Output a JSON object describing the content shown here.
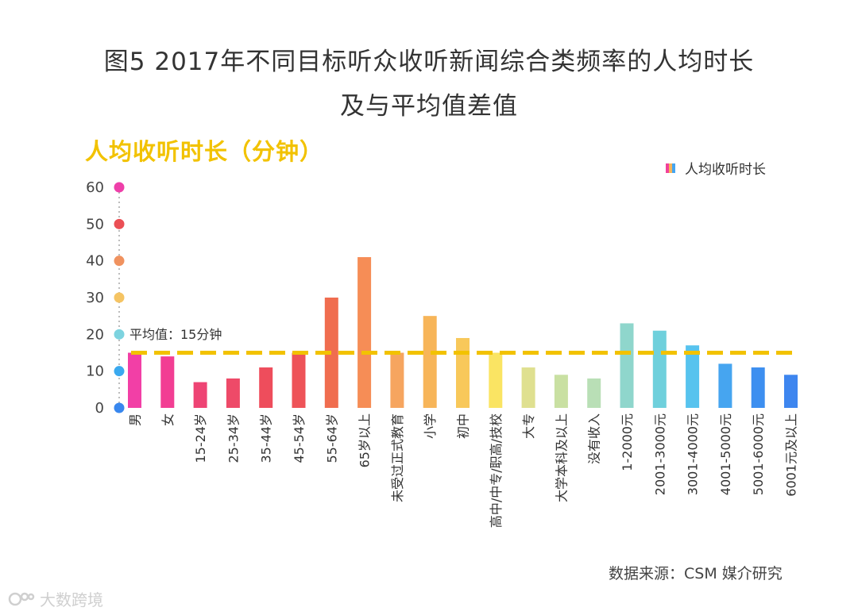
{
  "title_line1": "图5 2017年不同目标听众收听新闻综合类频率的人均时长",
  "title_line2": "及与平均值差值",
  "subtitle": "人均收听时长（分钟）",
  "legend_label": "人均收听时长",
  "source": "数据来源：CSM 媒介研究",
  "watermark": "大数跨境",
  "chart_data": {
    "type": "bar",
    "title": "图5 2017年不同目标听众收听新闻综合类频率的人均时长 及与平均值差值",
    "ylabel": "人均收听时长（分钟）",
    "ylim": [
      0,
      60
    ],
    "yticks": [
      0,
      10,
      20,
      30,
      40,
      50,
      60
    ],
    "legend_position": "top-right",
    "categories": [
      "男",
      "女",
      "15-24岁",
      "25-34岁",
      "35-44岁",
      "45-54岁",
      "55-64岁",
      "65岁以上",
      "未受过正式教育",
      "小学",
      "初中",
      "高中/中专/职高/技校",
      "大专",
      "大学本科及以上",
      "没有收入",
      "1-2000元",
      "2001-3000元",
      "3001-4000元",
      "4001-5000元",
      "5001-6000元",
      "6001元及以上"
    ],
    "series": [
      {
        "name": "人均收听时长",
        "values": [
          15,
          14,
          7,
          8,
          11,
          15,
          30,
          41,
          15,
          25,
          19,
          15,
          11,
          9,
          8,
          23,
          21,
          17,
          12,
          11,
          9
        ]
      }
    ],
    "bar_colors": [
      "#f23fa6",
      "#f23e93",
      "#ee4474",
      "#ee4a68",
      "#ee4d5c",
      "#ee5358",
      "#f06d4f",
      "#f68d56",
      "#f6a55f",
      "#f7b559",
      "#f8c85a",
      "#fae463",
      "#dfe090",
      "#c9e0a2",
      "#b9dfb6",
      "#8fd6cc",
      "#6fd0dc",
      "#57c3ee",
      "#46a5f0",
      "#3d8ff0",
      "#3e86ef"
    ],
    "axis_dots": [
      {
        "value": 60,
        "color": "#ee3fa9"
      },
      {
        "value": 50,
        "color": "#eb4f55"
      },
      {
        "value": 40,
        "color": "#f0925f"
      },
      {
        "value": 30,
        "color": "#f5c463"
      },
      {
        "value": 20,
        "color": "#7dd3df"
      },
      {
        "value": 10,
        "color": "#3aa9ef"
      },
      {
        "value": 0,
        "color": "#3887ee"
      }
    ],
    "average": {
      "value": 15,
      "label": "平均值：15分钟",
      "color": "#f2c200"
    }
  }
}
